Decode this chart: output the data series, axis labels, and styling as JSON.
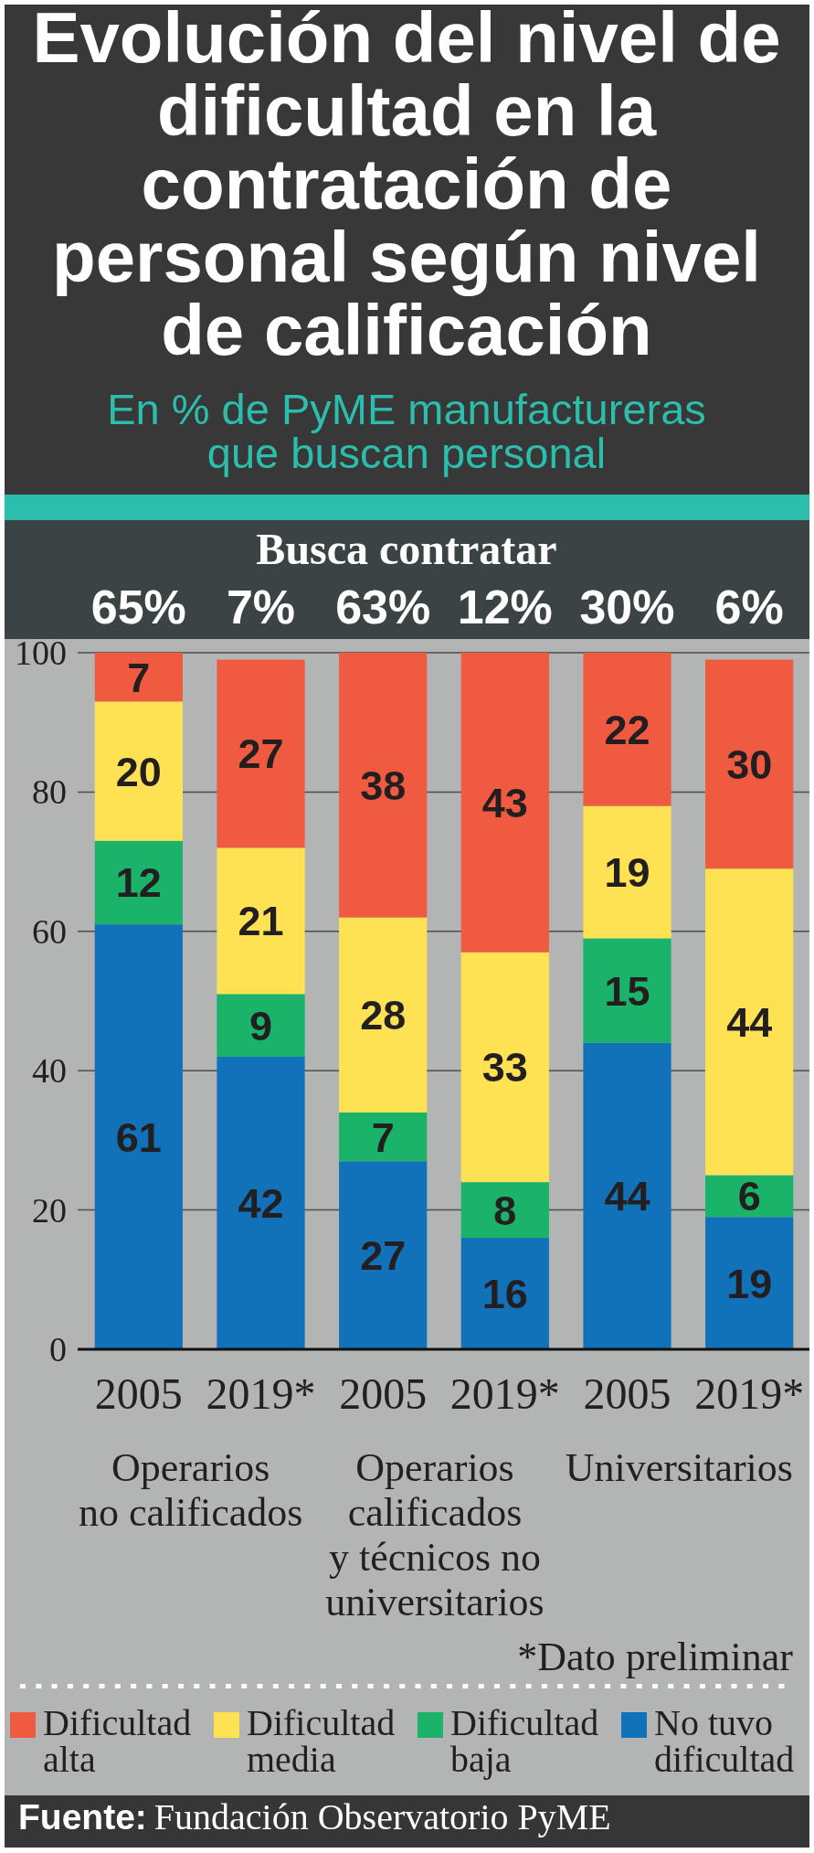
{
  "chart_data": {
    "type": "bar",
    "title": "Evolución del nivel de dificultad en la contratación de personal según nivel de calificación",
    "subtitle": "En % de PyME manufactureras que buscan personal",
    "categories": [
      "2005",
      "2019*",
      "2005",
      "2019*",
      "2005",
      "2019*"
    ],
    "series": [
      {
        "name": "No tuvo dificultad",
        "color": "#1172ba",
        "values": [
          61,
          42,
          27,
          16,
          44,
          19
        ]
      },
      {
        "name": "Dificultad baja",
        "color": "#1bb36a",
        "values": [
          12,
          9,
          7,
          8,
          15,
          6
        ]
      },
      {
        "name": "Dificultad media",
        "color": "#fee253",
        "values": [
          20,
          21,
          28,
          33,
          19,
          44
        ]
      },
      {
        "name": "Dificultad alta",
        "color": "#f05a40",
        "values": [
          7,
          27,
          38,
          43,
          22,
          30
        ]
      }
    ],
    "stacked": true,
    "ylim": [
      0,
      100
    ],
    "yticks": [
      0,
      20,
      40,
      60,
      80,
      100
    ],
    "grid": "y",
    "legend": "bottom",
    "data_labels": true,
    "annotations": [
      "Busca contratar",
      "65%",
      "7%",
      "63%",
      "12%",
      "30%",
      "6%",
      "Operarios no calificados",
      "Operarios calificados y técnicos no universitarios",
      "Universitarios",
      "*Dato preliminar",
      "Fuente: Fundación Observatorio PyME"
    ]
  }
}
